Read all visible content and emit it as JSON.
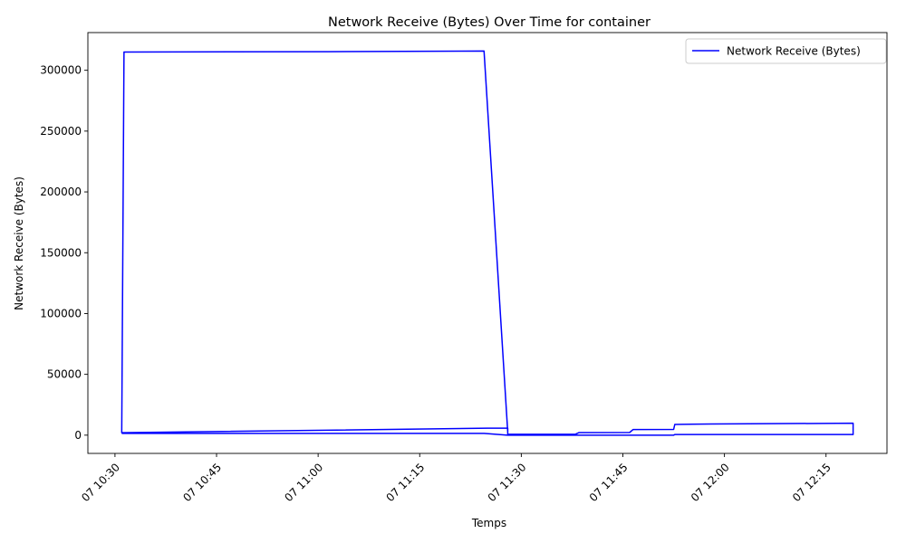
{
  "chart_data": {
    "type": "line",
    "title": "Network Receive (Bytes) Over Time for container",
    "xlabel": "Temps",
    "ylabel": "Network Receive (Bytes)",
    "x_axis_type": "time",
    "xlim": [
      "2024-01-07 10:26",
      "2024-01-07 12:24"
    ],
    "ylim": [
      -15000,
      331000
    ],
    "x_ticks": [
      {
        "value": "2024-01-07 10:30",
        "label": "07 10:30"
      },
      {
        "value": "2024-01-07 10:45",
        "label": "07 10:45"
      },
      {
        "value": "2024-01-07 11:00",
        "label": "07 11:00"
      },
      {
        "value": "2024-01-07 11:15",
        "label": "07 11:15"
      },
      {
        "value": "2024-01-07 11:30",
        "label": "07 11:30"
      },
      {
        "value": "2024-01-07 11:45",
        "label": "07 11:45"
      },
      {
        "value": "2024-01-07 12:00",
        "label": "07 12:00"
      },
      {
        "value": "2024-01-07 12:15",
        "label": "07 12:15"
      }
    ],
    "y_ticks": [
      0,
      50000,
      100000,
      150000,
      200000,
      250000,
      300000
    ],
    "legend": {
      "position": "top-right",
      "entries": [
        "Network Receive (Bytes)"
      ]
    },
    "grid": false,
    "color": "#0000ff",
    "series": [
      {
        "name": "Network Receive (Bytes)",
        "points": [
          {
            "x": "2024-01-07 10:31:00",
            "y": 1500
          },
          {
            "x": "2024-01-07 11:24:30",
            "y": 1500
          },
          {
            "x": "2024-01-07 11:28:00",
            "y": 0
          },
          {
            "x": "2024-01-07 11:52:30",
            "y": 0
          },
          {
            "x": "2024-01-07 11:52:40",
            "y": 500
          },
          {
            "x": "2024-01-07 12:19:00",
            "y": 500
          },
          {
            "x": "2024-01-07 12:19:00",
            "y": 9800
          },
          {
            "x": "2024-01-07 11:58:00",
            "y": 9200
          },
          {
            "x": "2024-01-07 11:52:40",
            "y": 8800
          },
          {
            "x": "2024-01-07 11:52:30",
            "y": 4700
          },
          {
            "x": "2024-01-07 11:46:30",
            "y": 4600
          },
          {
            "x": "2024-01-07 11:46:00",
            "y": 2200
          },
          {
            "x": "2024-01-07 11:38:30",
            "y": 2100
          },
          {
            "x": "2024-01-07 11:38:00",
            "y": 800
          },
          {
            "x": "2024-01-07 11:28:00",
            "y": 700
          },
          {
            "x": "2024-01-07 11:28:00",
            "y": 5800
          },
          {
            "x": "2024-01-07 11:25:00",
            "y": 5700
          },
          {
            "x": "2024-01-07 10:31:00",
            "y": 2000
          },
          {
            "x": "2024-01-07 10:31:20",
            "y": 315000
          },
          {
            "x": "2024-01-07 11:01:30",
            "y": 315300
          },
          {
            "x": "2024-01-07 11:24:30",
            "y": 315800
          },
          {
            "x": "2024-01-07 11:28:00",
            "y": 2500
          }
        ]
      }
    ]
  }
}
